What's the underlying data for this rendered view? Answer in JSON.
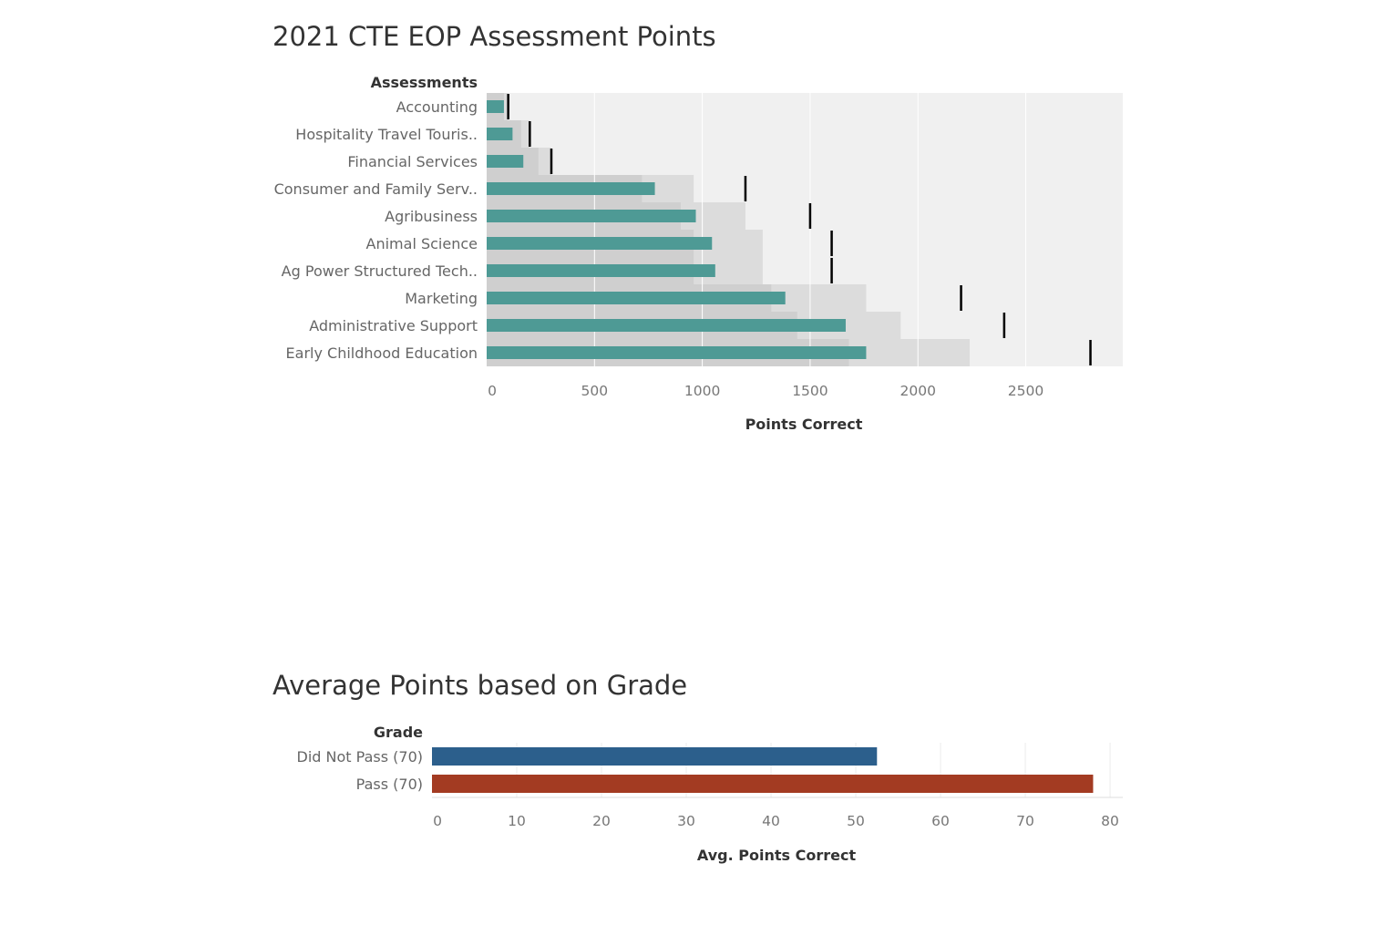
{
  "chart_data": [
    {
      "type": "bar",
      "subtype": "bullet",
      "title": "2021 CTE EOP Assessment Points",
      "row_header": "Assessments",
      "xlabel": "Points Correct",
      "xlim": [
        0,
        2950
      ],
      "x_ticks": [
        0,
        500,
        1000,
        1500,
        2000,
        2500
      ],
      "categories": [
        "Accounting",
        "Hospitality Travel Touris..",
        "Financial Services",
        "Consumer and Family Serv..",
        "Agribusiness",
        "Animal Science",
        "Ag Power Structured Tech..",
        "Marketing",
        "Administrative Support",
        "Early Childhood Education"
      ],
      "values": [
        80,
        120,
        170,
        780,
        970,
        1045,
        1060,
        1385,
        1665,
        1760
      ],
      "reference_targets": [
        100,
        200,
        300,
        1200,
        1500,
        1600,
        1600,
        2200,
        2400,
        2800
      ],
      "reference_band_inner": [
        80,
        160,
        240,
        720,
        900,
        960,
        960,
        1320,
        1440,
        1680
      ],
      "reference_band_outer": [
        100,
        200,
        300,
        960,
        1200,
        1280,
        1280,
        1760,
        1920,
        2240
      ],
      "colors": {
        "bar": "#4e9a95",
        "target": "#000000",
        "band_inner": "#cfcfcf",
        "band_outer": "#dcdcdc",
        "plot_bg": "#f0f0f0",
        "grid": "#ffffff"
      },
      "grid": true
    },
    {
      "type": "bar",
      "title": "Average Points based on Grade",
      "row_header": "Grade",
      "xlabel": "Avg. Points Correct",
      "xlim": [
        0,
        81.5
      ],
      "x_ticks": [
        0,
        10,
        20,
        30,
        40,
        50,
        60,
        70,
        80
      ],
      "categories": [
        "Did Not Pass (70)",
        "Pass (70)"
      ],
      "values": [
        52.5,
        78
      ],
      "colors": {
        "bars": [
          "#2c5f8c",
          "#a33b22"
        ],
        "grid": "#ececec",
        "axis": "#dddddd"
      },
      "grid": true
    }
  ]
}
